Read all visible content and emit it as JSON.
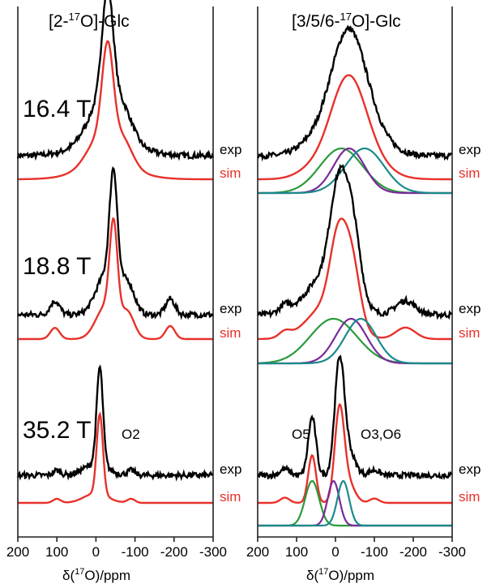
{
  "panel_titles": {
    "left_main": "[2-",
    "left_sup": "17",
    "left_tail": "O]-Glc",
    "right_main": "[3/5/6-",
    "right_sup": "17",
    "right_tail": "O]-Glc"
  },
  "field_labels": [
    "16.4 T",
    "18.8 T",
    "35.2 T"
  ],
  "trace_labels": {
    "exp": "exp",
    "sim": "sim"
  },
  "site_labels": {
    "left": "O2",
    "right_a": "O5",
    "right_b": "O3,O6"
  },
  "xlabel": {
    "prefix": "δ(",
    "sup": "17",
    "suffix": "O)/ppm"
  },
  "colors": {
    "exp": "#000000",
    "sim": "#e8312a",
    "green": "#2a9a3a",
    "purple": "#7a2a9a",
    "teal": "#1a8a8a",
    "frame": "#222222"
  },
  "chart_data": {
    "type": "line",
    "xlim": [
      200,
      -300
    ],
    "x_ticks": [
      200,
      100,
      0,
      -100,
      -200,
      -300
    ],
    "x_tick_labels": [
      "200",
      "100",
      "0",
      "-100",
      "-200",
      "-300"
    ],
    "panels": [
      {
        "column": "left",
        "field": "16.4 T",
        "components": []
      },
      {
        "column": "right",
        "field": "16.4 T",
        "components": [
          {
            "color": "green",
            "center": -15,
            "width": 55
          },
          {
            "color": "purple",
            "center": -35,
            "width": 40
          },
          {
            "color": "teal",
            "center": -75,
            "width": 50
          }
        ]
      },
      {
        "column": "left",
        "field": "18.8 T",
        "components": []
      },
      {
        "column": "right",
        "field": "18.8 T",
        "components": [
          {
            "color": "green",
            "center": 5,
            "width": 60
          },
          {
            "color": "purple",
            "center": -40,
            "width": 40
          },
          {
            "color": "teal",
            "center": -65,
            "width": 40
          }
        ]
      },
      {
        "column": "left",
        "field": "35.2 T",
        "components": []
      },
      {
        "column": "right",
        "field": "35.2 T",
        "components": [
          {
            "color": "green",
            "center": 60,
            "width": 18
          },
          {
            "color": "purple",
            "center": 5,
            "width": 15
          },
          {
            "color": "teal",
            "center": -20,
            "width": 15
          }
        ]
      }
    ]
  }
}
